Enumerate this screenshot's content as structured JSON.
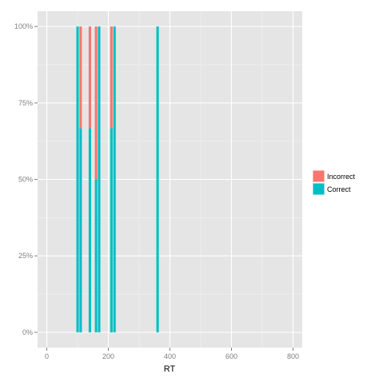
{
  "chart_data": {
    "type": "bar",
    "stacked": true,
    "position": "fill",
    "title": "",
    "xlabel": "RT",
    "ylabel": "",
    "xlim": [
      -30,
      830
    ],
    "ylim": [
      -0.05,
      1.05
    ],
    "x_ticks": [
      0,
      200,
      400,
      600,
      800
    ],
    "x_tick_labels": [
      "0",
      "200",
      "400",
      "600",
      "800"
    ],
    "y_ticks": [
      0,
      0.25,
      0.5,
      0.75,
      1.0
    ],
    "y_tick_labels": [
      "0%",
      "25%",
      "50%",
      "75%",
      "100%"
    ],
    "grid": true,
    "legend_position": "right",
    "bar_width": 8,
    "series": [
      {
        "name": "Incorrect",
        "color": "#F8766D",
        "points": [
          {
            "x": 110,
            "y": 0.333
          },
          {
            "x": 140,
            "y": 0.333
          },
          {
            "x": 160,
            "y": 0.5
          },
          {
            "x": 210,
            "y": 0.333
          }
        ]
      },
      {
        "name": "Correct",
        "color": "#00BFC4",
        "points": [
          {
            "x": 100,
            "y": 1.0
          },
          {
            "x": 110,
            "y": 0.667
          },
          {
            "x": 140,
            "y": 0.667
          },
          {
            "x": 160,
            "y": 0.5
          },
          {
            "x": 170,
            "y": 1.0
          },
          {
            "x": 210,
            "y": 0.667
          },
          {
            "x": 220,
            "y": 1.0
          },
          {
            "x": 360,
            "y": 1.0
          }
        ]
      }
    ]
  }
}
